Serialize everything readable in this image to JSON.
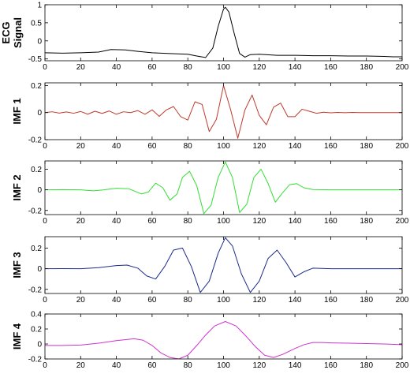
{
  "chart_data": [
    {
      "type": "line",
      "ylabel": [
        "ECG",
        "Signal"
      ],
      "xlim": [
        0,
        200
      ],
      "ylim": [
        -0.55,
        1.0
      ],
      "xticks": [
        0,
        20,
        40,
        60,
        80,
        100,
        120,
        140,
        160,
        180,
        200
      ],
      "yticks": [
        -0.5,
        0,
        0.5,
        1
      ],
      "ytick_labels": [
        "-0.5",
        "0",
        "0.5",
        "1"
      ],
      "series": [
        {
          "color": "#000000",
          "x": [
            0,
            10,
            20,
            30,
            37,
            45,
            52,
            60,
            70,
            80,
            85,
            90,
            94,
            97,
            100,
            101,
            103,
            106,
            109,
            112,
            115,
            120,
            130,
            140,
            150,
            160,
            170,
            180,
            190,
            195,
            200
          ],
          "y": [
            -0.33,
            -0.34,
            -0.33,
            -0.31,
            -0.24,
            -0.25,
            -0.29,
            -0.33,
            -0.35,
            -0.37,
            -0.42,
            -0.46,
            -0.2,
            0.4,
            0.88,
            0.93,
            0.8,
            0.2,
            -0.35,
            -0.45,
            -0.38,
            -0.37,
            -0.4,
            -0.4,
            -0.41,
            -0.41,
            -0.42,
            -0.42,
            -0.43,
            -0.44,
            -0.44
          ]
        }
      ]
    },
    {
      "type": "line",
      "ylabel": [
        "IMF 1"
      ],
      "xlim": [
        0,
        200
      ],
      "ylim": [
        -0.2,
        0.22
      ],
      "xticks": [
        0,
        20,
        40,
        60,
        80,
        100,
        120,
        140,
        160,
        180,
        200
      ],
      "yticks": [
        -0.2,
        0,
        0.2
      ],
      "ytick_labels": [
        "-0.2",
        "0",
        "0.2"
      ],
      "series": [
        {
          "color": "#c0392b",
          "x": [
            0,
            4,
            8,
            12,
            16,
            20,
            24,
            28,
            32,
            36,
            40,
            44,
            48,
            52,
            56,
            60,
            64,
            68,
            72,
            76,
            80,
            84,
            88,
            92,
            96,
            100,
            104,
            108,
            112,
            116,
            120,
            124,
            128,
            132,
            136,
            140,
            144,
            148,
            152,
            156,
            160,
            164,
            168,
            172,
            176,
            180,
            184,
            188,
            192,
            196,
            200
          ],
          "y": [
            0,
            0.006,
            -0.004,
            0.005,
            -0.005,
            0.008,
            -0.012,
            0.01,
            -0.006,
            0.012,
            -0.012,
            0.006,
            0,
            0.015,
            -0.012,
            0.02,
            -0.028,
            0.02,
            0.045,
            -0.03,
            -0.055,
            0.08,
            0.06,
            -0.14,
            -0.05,
            0.2,
            0.02,
            -0.19,
            0.02,
            0.13,
            -0.02,
            -0.09,
            0.04,
            0.07,
            -0.03,
            -0.03,
            0.025,
            0.01,
            -0.005,
            0.003,
            -0.002,
            0.001,
            -0.001,
            0.001,
            0,
            0,
            0,
            0,
            0,
            0,
            0
          ]
        }
      ]
    },
    {
      "type": "line",
      "ylabel": [
        "IMF 2"
      ],
      "xlim": [
        0,
        200
      ],
      "ylim": [
        -0.24,
        0.28
      ],
      "xticks": [
        0,
        20,
        40,
        60,
        80,
        100,
        120,
        140,
        160,
        180,
        200
      ],
      "yticks": [
        -0.2,
        0,
        0.2
      ],
      "ytick_labels": [
        "-0.2",
        "0",
        "0.2"
      ],
      "series": [
        {
          "color": "#33dd33",
          "x": [
            0,
            10,
            20,
            27,
            33,
            40,
            47,
            54,
            58,
            62,
            66,
            70,
            74,
            77,
            81,
            85,
            89,
            93,
            97,
            101,
            105,
            109,
            113,
            117,
            121,
            125,
            129,
            133,
            137,
            141,
            145,
            150,
            160,
            170,
            180,
            190,
            200
          ],
          "y": [
            0,
            0.002,
            0,
            -0.01,
            0,
            0.015,
            0.01,
            -0.04,
            -0.02,
            0.065,
            0.02,
            -0.1,
            -0.04,
            0.12,
            0.18,
            0.04,
            -0.23,
            -0.15,
            0.12,
            0.27,
            0.12,
            -0.22,
            -0.14,
            0.12,
            0.2,
            0.06,
            -0.12,
            -0.03,
            0.05,
            0.06,
            0.02,
            0.003,
            0,
            0,
            0,
            0,
            0
          ]
        }
      ]
    },
    {
      "type": "line",
      "ylabel": [
        "IMF 3"
      ],
      "xlim": [
        0,
        200
      ],
      "ylim": [
        -0.24,
        0.31
      ],
      "xticks": [
        0,
        20,
        40,
        60,
        80,
        100,
        120,
        140,
        160,
        180,
        200
      ],
      "yticks": [
        -0.2,
        0,
        0.2
      ],
      "ytick_labels": [
        "-0.2",
        "0",
        "0.2"
      ],
      "series": [
        {
          "color": "#1c2a8a",
          "x": [
            0,
            10,
            20,
            30,
            40,
            46,
            52,
            57,
            62,
            67,
            72,
            77,
            82,
            87,
            92,
            97,
            101,
            105,
            110,
            115,
            120,
            125,
            130,
            135,
            140,
            145,
            150,
            160,
            170,
            180,
            190,
            200
          ],
          "y": [
            0,
            0.001,
            0,
            0.01,
            0.03,
            0.035,
            0.005,
            -0.07,
            -0.1,
            0.02,
            0.18,
            0.2,
            0.02,
            -0.23,
            -0.12,
            0.15,
            0.3,
            0.22,
            -0.05,
            -0.23,
            -0.12,
            0.1,
            0.18,
            0.06,
            -0.08,
            -0.03,
            0.005,
            0,
            0,
            0,
            0,
            0
          ]
        }
      ]
    },
    {
      "type": "line",
      "ylabel": [
        "IMF 4"
      ],
      "xlim": [
        0,
        200
      ],
      "ylim": [
        -0.2,
        0.4
      ],
      "xticks": [
        0,
        20,
        40,
        60,
        80,
        100,
        120,
        140,
        160,
        180,
        200
      ],
      "yticks": [
        -0.2,
        0,
        0.2,
        0.4
      ],
      "ytick_labels": [
        "-0.2",
        "0",
        "0.2",
        "0.4"
      ],
      "series": [
        {
          "color": "#cc33cc",
          "x": [
            0,
            10,
            20,
            30,
            40,
            50,
            55,
            60,
            65,
            70,
            75,
            80,
            85,
            90,
            95,
            101,
            107,
            112,
            118,
            123,
            128,
            133,
            140,
            145,
            150,
            155,
            160,
            170,
            180,
            190,
            200
          ],
          "y": [
            -0.02,
            -0.02,
            -0.015,
            0.01,
            0.045,
            0.07,
            0.05,
            -0.02,
            -0.12,
            -0.18,
            -0.2,
            -0.15,
            -0.02,
            0.12,
            0.24,
            0.3,
            0.24,
            0.12,
            -0.04,
            -0.15,
            -0.18,
            -0.14,
            -0.06,
            -0.01,
            0.02,
            0.02,
            0.015,
            0.01,
            0.005,
            0,
            -0.01
          ]
        }
      ]
    }
  ]
}
